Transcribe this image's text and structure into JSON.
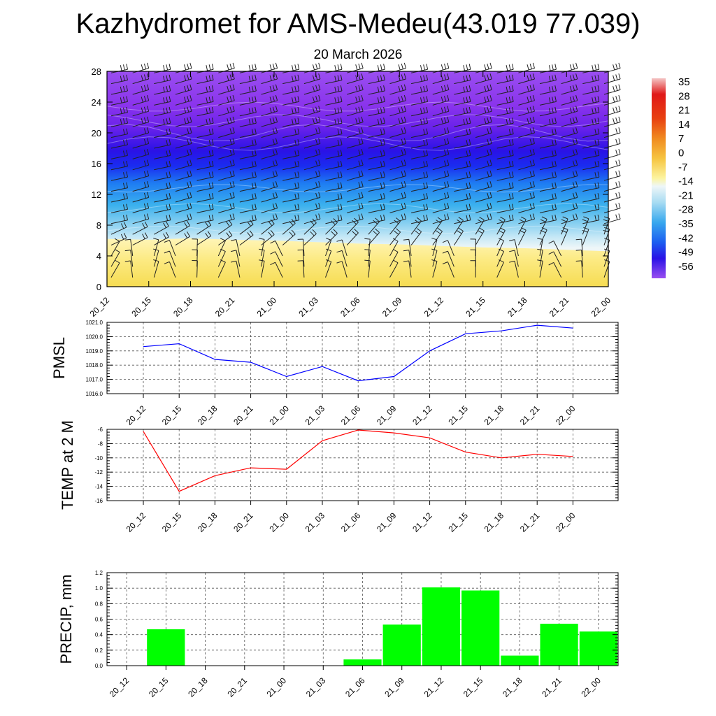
{
  "title": "Kazhydromet for AMS-Medeu(43.019 77.039)",
  "subtitle": "20 March 2026",
  "colors": {
    "pmsl_line": "#0000ff",
    "temp_line": "#ff0000",
    "precip_bar": "#00ff00"
  },
  "chart_data": [
    {
      "type": "heatmap",
      "name": "upper-air-temperature-cross-section",
      "x": [
        "20_12",
        "20_15",
        "20_18",
        "20_21",
        "21_00",
        "21_03",
        "21_06",
        "21_09",
        "21_12",
        "21_15",
        "21_18",
        "21_21",
        "22_00"
      ],
      "ylim": [
        0,
        28
      ],
      "yticks": [
        0,
        4,
        8,
        12,
        16,
        20,
        24,
        28
      ],
      "colorbar": {
        "labels": [
          "35",
          "28",
          "21",
          "14",
          "7",
          "0",
          "-7",
          "-14",
          "-21",
          "-28",
          "-35",
          "-42",
          "-49",
          "-56"
        ],
        "range": [
          -63,
          42
        ]
      },
      "warm_layer_top": [
        6.2,
        6.1,
        6.3,
        6.1,
        6.0,
        5.8,
        5.6,
        5.5,
        5.3,
        5.1,
        5.0,
        4.8,
        4.6
      ],
      "wind_barbs": true,
      "grid": false
    },
    {
      "type": "line",
      "ylabel": "PMSL",
      "x": [
        "20_12",
        "20_15",
        "20_18",
        "20_21",
        "21_00",
        "21_03",
        "21_06",
        "21_09",
        "21_12",
        "21_15",
        "21_18",
        "21_21",
        "22_00"
      ],
      "values": [
        1019.3,
        1019.5,
        1018.4,
        1018.2,
        1017.2,
        1017.9,
        1016.9,
        1017.2,
        1019.0,
        1020.2,
        1020.4,
        1020.8,
        1020.6
      ],
      "ylim": [
        1016.0,
        1021.0
      ],
      "yticks": [
        "1016.0",
        "1017.0",
        "1018.0",
        "1019.0",
        "1020.0",
        "1021.0"
      ],
      "grid": true
    },
    {
      "type": "line",
      "ylabel": "TEMP at 2 M",
      "x": [
        "20_12",
        "20_15",
        "20_18",
        "20_21",
        "21_00",
        "21_03",
        "21_06",
        "21_09",
        "21_12",
        "21_15",
        "21_18",
        "21_21",
        "22_00"
      ],
      "values": [
        -6.3,
        -14.7,
        -12.5,
        -11.4,
        -11.6,
        -7.6,
        -6.1,
        -6.5,
        -7.2,
        -9.2,
        -10.0,
        -9.5,
        -9.8
      ],
      "ylim": [
        -16,
        -6
      ],
      "yticks": [
        "-16",
        "-14",
        "-12",
        "-10",
        "-8",
        "-6"
      ],
      "grid": true
    },
    {
      "type": "bar",
      "ylabel": "PRECIP, mm",
      "categories": [
        "20_12",
        "20_15",
        "20_18",
        "20_21",
        "21_00",
        "21_03",
        "21_06",
        "21_09",
        "21_12",
        "21_15",
        "21_18",
        "21_21",
        "22_00"
      ],
      "values": [
        0,
        0.47,
        0,
        0,
        0,
        0,
        0.08,
        0.53,
        1.01,
        0.97,
        0.13,
        0.54,
        0.44
      ],
      "ylim": [
        0,
        1.2
      ],
      "yticks": [
        "0.0",
        "0.2",
        "0.4",
        "0.6",
        "0.8",
        "1.0",
        "1.2"
      ],
      "grid": true
    }
  ]
}
